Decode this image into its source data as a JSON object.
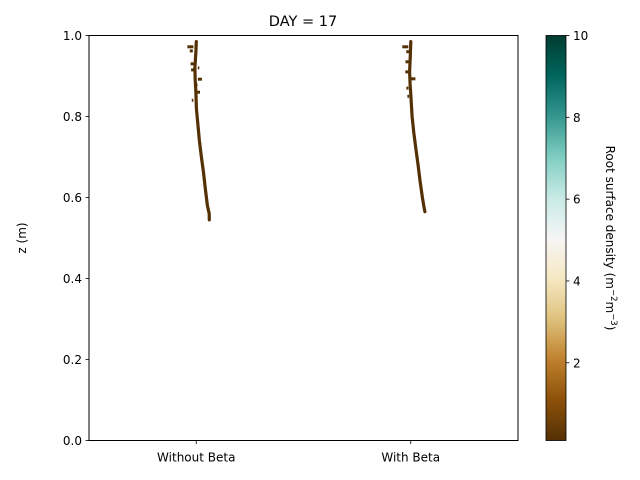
{
  "chart_data": {
    "type": "heatmap",
    "title": "DAY = 17",
    "ylabel": "z (m)",
    "ylim": [
      0.0,
      1.0
    ],
    "y_ticks": [
      "0.0",
      "0.2",
      "0.4",
      "0.6",
      "0.8",
      "1.0"
    ],
    "categories": [
      "Without Beta",
      "With Beta"
    ],
    "colorbar": {
      "label_main": "Root surface density (m",
      "label_exp1": "−2",
      "label_mid": "m",
      "label_exp2": "−3",
      "label_close": ")",
      "range": [
        0.1,
        10
      ],
      "ticks": [
        "2",
        "4",
        "6",
        "8",
        "10"
      ],
      "colormap": "BrBG",
      "stops": [
        "#543005",
        "#8c510a",
        "#bf812d",
        "#dfc27d",
        "#f6e8c3",
        "#f5f5f5",
        "#c7eae5",
        "#80cdc1",
        "#35978f",
        "#01665e",
        "#003c30"
      ]
    },
    "series": [
      {
        "category": "Without Beta",
        "color": "#543005",
        "root_path": [
          [
            0.0,
            0.985
          ],
          [
            -0.3,
            0.96
          ],
          [
            -1.3,
            0.92
          ],
          [
            -1.1,
            0.89
          ],
          [
            -0.3,
            0.86
          ],
          [
            0.2,
            0.82
          ],
          [
            1.7,
            0.78
          ],
          [
            3.2,
            0.74
          ],
          [
            5.2,
            0.7
          ],
          [
            7.3,
            0.66
          ],
          [
            9.2,
            0.62
          ],
          [
            11.2,
            0.58
          ],
          [
            12.9,
            0.56
          ],
          [
            13.1,
            0.545
          ]
        ],
        "fragments": [
          [
            -5.8,
            0.972,
            6.0
          ],
          [
            -5.0,
            0.962,
            3.0
          ],
          [
            -4.2,
            0.93,
            3.0
          ],
          [
            -3.4,
            0.915,
            3.5
          ],
          [
            2.3,
            0.92,
            1.5
          ],
          [
            3.7,
            0.892,
            4.0
          ],
          [
            -0.5,
            0.878,
            3.5
          ],
          [
            2.5,
            0.86,
            2.5
          ],
          [
            -3.7,
            0.84,
            1.5
          ],
          [
            0.5,
            0.845,
            1.5
          ]
        ]
      },
      {
        "category": "With Beta",
        "color": "#543005",
        "root_path": [
          [
            0.0,
            0.985
          ],
          [
            -0.5,
            0.95
          ],
          [
            -1.1,
            0.91
          ],
          [
            -0.7,
            0.88
          ],
          [
            0.2,
            0.85
          ],
          [
            1.4,
            0.8
          ],
          [
            3.0,
            0.76
          ],
          [
            5.2,
            0.72
          ],
          [
            7.3,
            0.68
          ],
          [
            9.3,
            0.64
          ],
          [
            11.6,
            0.6
          ],
          [
            13.3,
            0.575
          ],
          [
            14.2,
            0.565
          ]
        ],
        "fragments": [
          [
            -5.5,
            0.972,
            6.0
          ],
          [
            -3.0,
            0.96,
            3.0
          ],
          [
            -3.5,
            0.935,
            3.5
          ],
          [
            -4.0,
            0.91,
            3.0
          ],
          [
            2.2,
            0.893,
            5.0
          ],
          [
            -3.4,
            0.87,
            2.0
          ],
          [
            -2.5,
            0.85,
            1.8
          ],
          [
            0.5,
            0.842,
            2.0
          ]
        ]
      }
    ]
  }
}
